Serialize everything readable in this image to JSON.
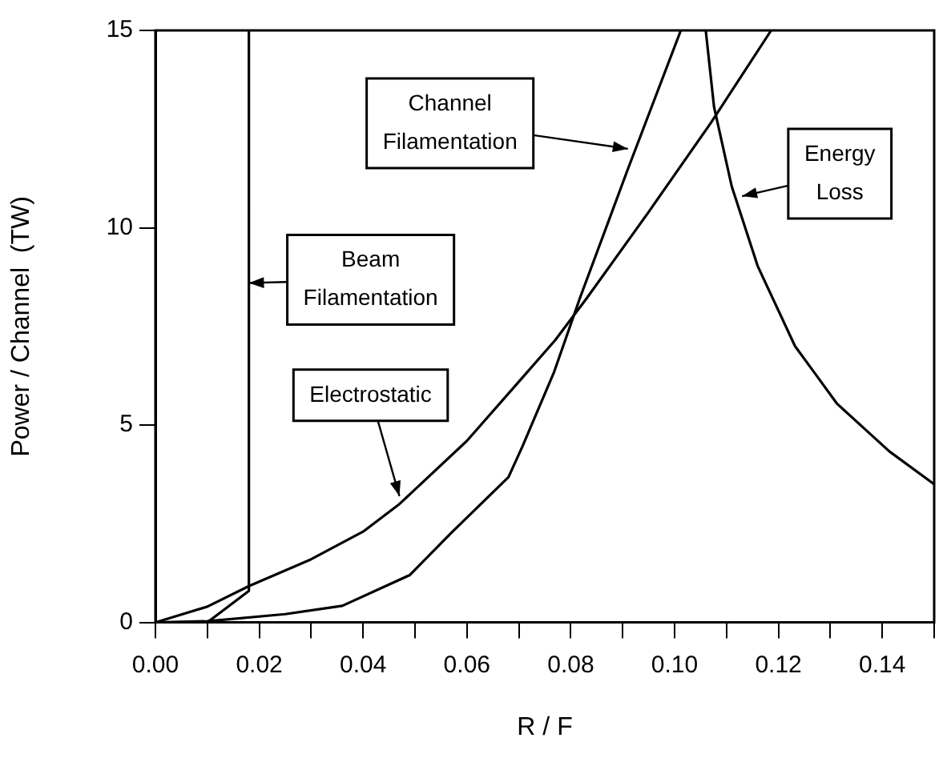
{
  "chart_data": {
    "type": "line",
    "xlabel": "R / F",
    "ylabel": "Power / Channel  (TW)",
    "xlim": [
      0,
      0.15
    ],
    "ylim": [
      0,
      15
    ],
    "xticks": [
      {
        "value": 0,
        "label": "0.00"
      },
      {
        "value": 0.01,
        "label": null
      },
      {
        "value": 0.02,
        "label": "0.02"
      },
      {
        "value": 0.03,
        "label": null
      },
      {
        "value": 0.04,
        "label": "0.04"
      },
      {
        "value": 0.05,
        "label": null
      },
      {
        "value": 0.06,
        "label": "0.06"
      },
      {
        "value": 0.07,
        "label": null
      },
      {
        "value": 0.08,
        "label": "0.08"
      },
      {
        "value": 0.09,
        "label": null
      },
      {
        "value": 0.1,
        "label": "0.10"
      },
      {
        "value": 0.11,
        "label": null
      },
      {
        "value": 0.12,
        "label": "0.12"
      },
      {
        "value": 0.13,
        "label": null
      },
      {
        "value": 0.14,
        "label": "0.14"
      },
      {
        "value": 0.15,
        "label": null
      }
    ],
    "yticks": [
      0,
      5,
      10,
      15
    ],
    "grid": false,
    "legend": false,
    "marker": "none",
    "line_style": "solid",
    "series": [
      {
        "color": "#000000",
        "x": [
          0.01,
          0.018,
          0.018
        ],
        "values": [
          0,
          0.8,
          15
        ]
      },
      {
        "color": "#000000",
        "x": [
          0,
          0.01,
          0.018,
          0.03,
          0.04,
          0.047,
          0.06,
          0.07,
          0.077,
          0.083,
          0.095,
          0.107,
          0.1186
        ],
        "values": [
          0,
          0.4,
          0.92,
          1.6,
          2.3,
          3.0,
          4.6,
          6.1,
          7.15,
          8.2,
          10.4,
          12.66,
          15
        ]
      },
      {
        "color": "#000000",
        "x": [
          0,
          0.01,
          0.025,
          0.036,
          0.049,
          0.057,
          0.068,
          0.0707,
          0.0768,
          0.0818,
          0.0909,
          0.1012
        ],
        "values": [
          0,
          0.03,
          0.21,
          0.42,
          1.2,
          2.27,
          3.68,
          4.46,
          6.35,
          8.23,
          11.45,
          15
        ]
      },
      {
        "color": "#000000",
        "x": [
          0.106,
          0.1076,
          0.111,
          0.116,
          0.1232,
          0.1313,
          0.1414,
          0.15
        ],
        "values": [
          15,
          13.06,
          11.05,
          9.03,
          7.0,
          5.54,
          4.33,
          3.5
        ]
      }
    ],
    "annotations": [
      {
        "text": "Channel Filamentation",
        "x": 0.091,
        "y": 12.0
      },
      {
        "text": "Beam Filamentation",
        "x": 0.018,
        "y": 8.6
      },
      {
        "text": "Electrostatic",
        "x": 0.047,
        "y": 3.2
      },
      {
        "text": "Energy Loss",
        "x": 0.113,
        "y": 10.8
      }
    ]
  }
}
